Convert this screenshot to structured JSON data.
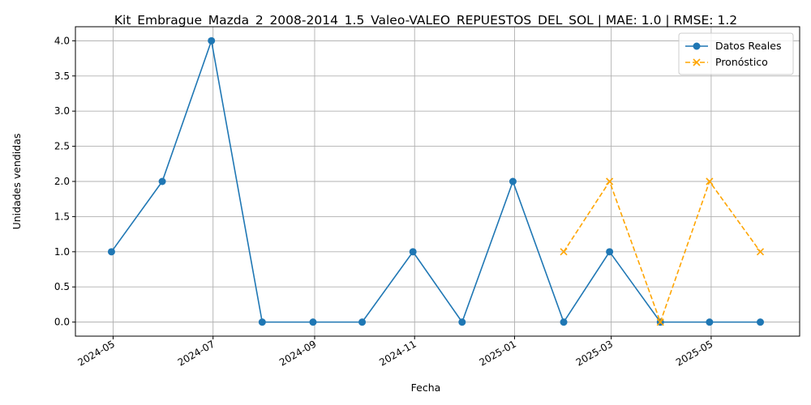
{
  "chart_data": {
    "type": "line",
    "title": "Kit_Embrague_Mazda_2_2008-2014_1.5_Valeo-VALEO_REPUESTOS_DEL_SOL | MAE: 1.0 | RMSE: 1.2",
    "xlabel": "Fecha",
    "ylabel": "Unidades vendidas",
    "x_ticks": [
      "2024-05",
      "2024-07",
      "2024-09",
      "2024-11",
      "2025-01",
      "2025-03",
      "2025-05"
    ],
    "y_ticks": [
      "0.0",
      "0.5",
      "1.0",
      "1.5",
      "2.0",
      "2.5",
      "3.0",
      "3.5",
      "4.0"
    ],
    "ylim": [
      -0.2,
      4.2
    ],
    "xlim": [
      "2024-04-08",
      "2025-06-24"
    ],
    "grid": true,
    "legend_position": "top-right",
    "series": [
      {
        "name": "Datos Reales",
        "color": "#1f77b4",
        "marker": "circle",
        "linestyle": "solid",
        "points": [
          {
            "x": "2024-04-30",
            "y": 1
          },
          {
            "x": "2024-05-31",
            "y": 2
          },
          {
            "x": "2024-06-30",
            "y": 4
          },
          {
            "x": "2024-07-31",
            "y": 0
          },
          {
            "x": "2024-08-31",
            "y": 0
          },
          {
            "x": "2024-09-30",
            "y": 0
          },
          {
            "x": "2024-10-31",
            "y": 1
          },
          {
            "x": "2024-11-30",
            "y": 0
          },
          {
            "x": "2024-12-31",
            "y": 2
          },
          {
            "x": "2025-01-31",
            "y": 0
          },
          {
            "x": "2025-02-28",
            "y": 1
          },
          {
            "x": "2025-03-31",
            "y": 0
          },
          {
            "x": "2025-04-30",
            "y": 0
          },
          {
            "x": "2025-05-31",
            "y": 0
          }
        ]
      },
      {
        "name": "Pronóstico",
        "color": "#ffa500",
        "marker": "x",
        "linestyle": "dashed",
        "points": [
          {
            "x": "2025-01-31",
            "y": 1
          },
          {
            "x": "2025-02-28",
            "y": 2
          },
          {
            "x": "2025-03-31",
            "y": 0
          },
          {
            "x": "2025-04-30",
            "y": 2
          },
          {
            "x": "2025-05-31",
            "y": 1
          }
        ]
      }
    ]
  }
}
